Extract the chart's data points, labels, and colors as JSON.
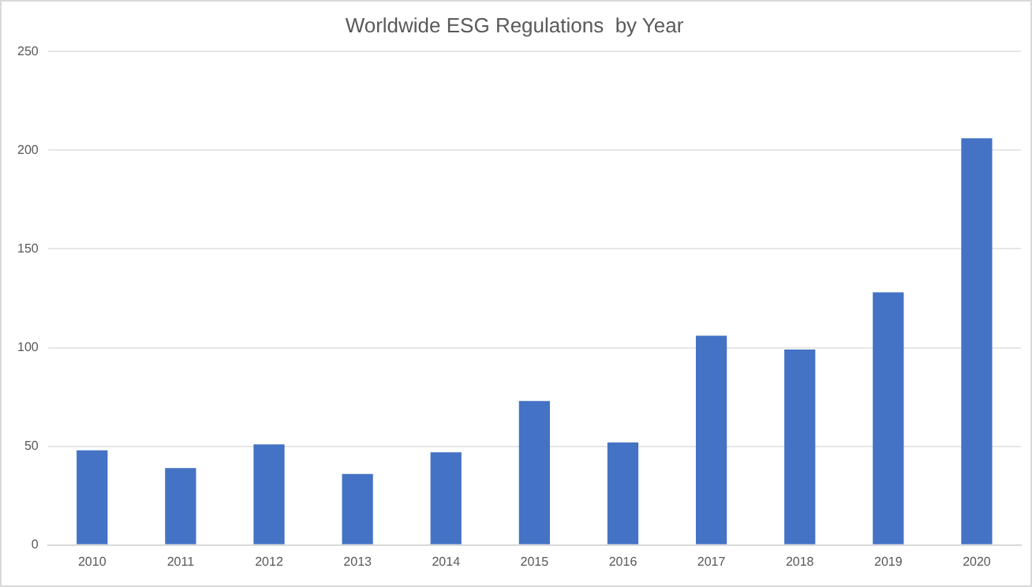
{
  "chart_data": {
    "type": "bar",
    "title": "Worldwide ESG Regulations  by Year",
    "categories": [
      "2010",
      "2011",
      "2012",
      "2013",
      "2014",
      "2015",
      "2016",
      "2017",
      "2018",
      "2019",
      "2020"
    ],
    "values": [
      48,
      39,
      51,
      36,
      47,
      73,
      52,
      106,
      99,
      128,
      206
    ],
    "color": "#4472c4",
    "ylim": [
      0,
      250
    ],
    "yticks": [
      0,
      50,
      100,
      150,
      200,
      250
    ],
    "grid": "y"
  }
}
